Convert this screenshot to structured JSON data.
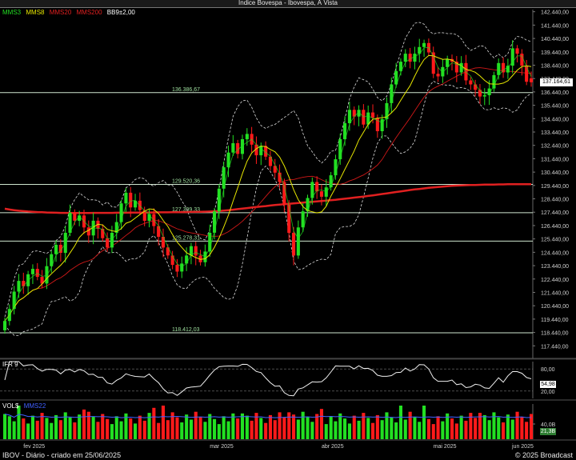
{
  "window": {
    "title": "Índice Bovespa - Ibovespa, À Vista"
  },
  "legend": [
    {
      "label": "MMS3",
      "color": "#22dd22"
    },
    {
      "label": "MMS8",
      "color": "#e6e600"
    },
    {
      "label": "MMS20",
      "color": "#e02020"
    },
    {
      "label": "MMS200",
      "color": "#e02020"
    },
    {
      "label": "BB9±2,00",
      "color": "#ffffff"
    }
  ],
  "colors": {
    "up": "#22e022",
    "down": "#ff1a1a",
    "axis_text": "#d0d0d0",
    "fib_line": "#cfe6cf",
    "fib_text": "#9fe09f"
  },
  "chart_data": [
    {
      "type": "candlestick",
      "name": "price",
      "ylim": [
        116500,
        142600
      ],
      "ytick_labels": [
        "117.440,00",
        "118.440,00",
        "119.440,00",
        "120.440,00",
        "121.440,00",
        "122.440,00",
        "123.440,00",
        "124.440,00",
        "125.440,00",
        "126.440,00",
        "127.440,00",
        "128.440,00",
        "129.440,00",
        "130.440,00",
        "131.440,00",
        "132.440,00",
        "133.440,00",
        "134.440,00",
        "135.440,00",
        "136.440,00",
        "137.440,00",
        "138.440,00",
        "139.440,00",
        "140.440,00",
        "141.440,00",
        "142.440,00"
      ],
      "xtick_labels": [
        "fev 2025",
        "mar 2025",
        "abr 2025",
        "mai 2025",
        "jun 2025"
      ],
      "last_price": "137.164,61",
      "hlines": [
        {
          "label": "136.386,67",
          "value": 136387
        },
        {
          "label": "129.520,36",
          "value": 129520
        },
        {
          "label": "127.399,33",
          "value": 127399
        },
        {
          "label": "125.278,31",
          "value": 125278
        },
        {
          "label": "118.412,03",
          "value": 118412
        }
      ],
      "closes": [
        119300,
        120200,
        121500,
        122300,
        121900,
        122800,
        123200,
        122600,
        122100,
        123400,
        124300,
        125000,
        124400,
        125900,
        127400,
        126800,
        127200,
        126300,
        125700,
        126800,
        126200,
        125500,
        124800,
        125900,
        126700,
        128100,
        128900,
        127800,
        128300,
        127600,
        126800,
        127300,
        126400,
        125600,
        124800,
        124200,
        123500,
        123000,
        123600,
        124200,
        124900,
        124200,
        123700,
        124500,
        125900,
        127500,
        129200,
        130800,
        131900,
        132600,
        131800,
        132900,
        133300,
        132500,
        131700,
        132400,
        131600,
        130900,
        130400,
        129700,
        128000,
        125900,
        124200,
        126300,
        127500,
        128500,
        129700,
        129000,
        128600,
        129300,
        130200,
        131400,
        132900,
        134100,
        135100,
        134600,
        135100,
        134000,
        134900,
        134500,
        133500,
        134400,
        135600,
        137000,
        138000,
        138700,
        139300,
        138700,
        139300,
        139800,
        140100,
        139400,
        137800,
        137600,
        138300,
        138900,
        138700,
        137900,
        138600,
        137300,
        137000,
        136600,
        136100,
        136200,
        136700,
        137700,
        138600,
        137900,
        138400,
        139700,
        139300,
        138400,
        137200,
        137160
      ],
      "ma200": [
        127700,
        127640,
        127590,
        127550,
        127520,
        127490,
        127470,
        127450,
        127440,
        127420,
        127410,
        127400,
        127390,
        127390,
        127380,
        127380,
        127380,
        127380,
        127380,
        127390,
        127390,
        127390,
        127390,
        127390,
        127400,
        127400,
        127400,
        127410,
        127410,
        127410,
        127420,
        127420,
        127420,
        127430,
        127430,
        127430,
        127440,
        127440,
        127450,
        127450,
        127460,
        127460,
        127470,
        127480,
        127490,
        127510,
        127530,
        127560,
        127590,
        127630,
        127670,
        127710,
        127750,
        127790,
        127830,
        127870,
        127900,
        127940,
        127980,
        128010,
        128040,
        128070,
        128100,
        128130,
        128160,
        128190,
        128220,
        128250,
        128280,
        128310,
        128340,
        128370,
        128410,
        128450,
        128490,
        128530,
        128570,
        128610,
        128660,
        128700,
        128750,
        128800,
        128850,
        128900,
        128950,
        129000,
        129050,
        129100,
        129140,
        129180,
        129220,
        129260,
        129300,
        129330,
        129360,
        129390,
        129410,
        129430,
        129450,
        129460,
        129470,
        129480,
        129490,
        129500,
        129510,
        129510,
        129520,
        129520,
        129530,
        129530,
        129530,
        129530,
        129530,
        129530
      ]
    },
    {
      "type": "line",
      "name": "IFR 9",
      "ylim": [
        0,
        100
      ],
      "ytick_labels": [
        "80,00",
        "20,00"
      ],
      "last_value": "54,98"
    },
    {
      "type": "bar",
      "name": "VOL$",
      "series_label": "MMS22",
      "ytick_labels": [
        "40,0B"
      ],
      "last_value": "21,3B"
    }
  ],
  "footer": {
    "left": "IBOV - Diário - criado em 25/06/2025",
    "right": "© 2025 Broadcast"
  }
}
